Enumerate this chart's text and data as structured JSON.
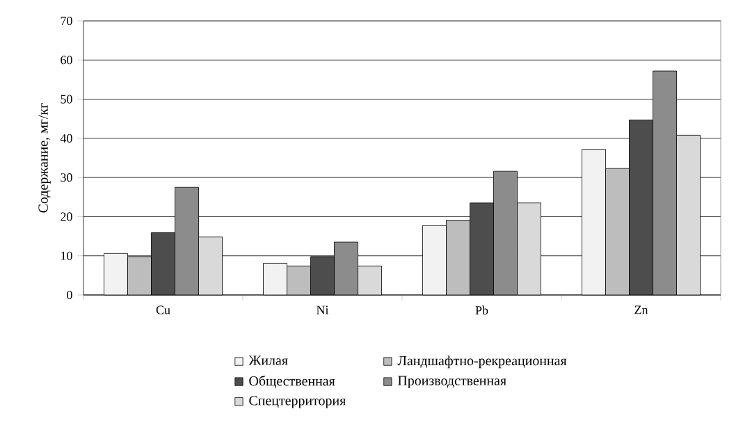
{
  "chart_data": {
    "type": "bar",
    "ylabel": "Содержание, мг/кг",
    "categories": [
      "Cu",
      "Ni",
      "Pb",
      "Zn"
    ],
    "series": [
      {
        "name": "Жилая",
        "color": "#f2f2f2",
        "values": [
          10.6,
          8.1,
          17.7,
          37.2
        ]
      },
      {
        "name": "Ландшафтно-рекреационная",
        "color": "#bdbdbd",
        "values": [
          9.8,
          7.4,
          19.1,
          32.3
        ]
      },
      {
        "name": "Общественная",
        "color": "#4d4d4d",
        "values": [
          15.9,
          9.8,
          23.5,
          44.7
        ]
      },
      {
        "name": "Производственная",
        "color": "#8c8c8c",
        "values": [
          27.5,
          13.5,
          31.6,
          57.2
        ]
      },
      {
        "name": "Спецтерритория",
        "color": "#d9d9d9",
        "values": [
          14.8,
          7.4,
          23.5,
          40.8
        ]
      }
    ],
    "ylim": [
      0,
      70
    ],
    "yticks": [
      0,
      10,
      20,
      30,
      40,
      50,
      60,
      70
    ],
    "grid": "y",
    "legend": "bottom"
  }
}
